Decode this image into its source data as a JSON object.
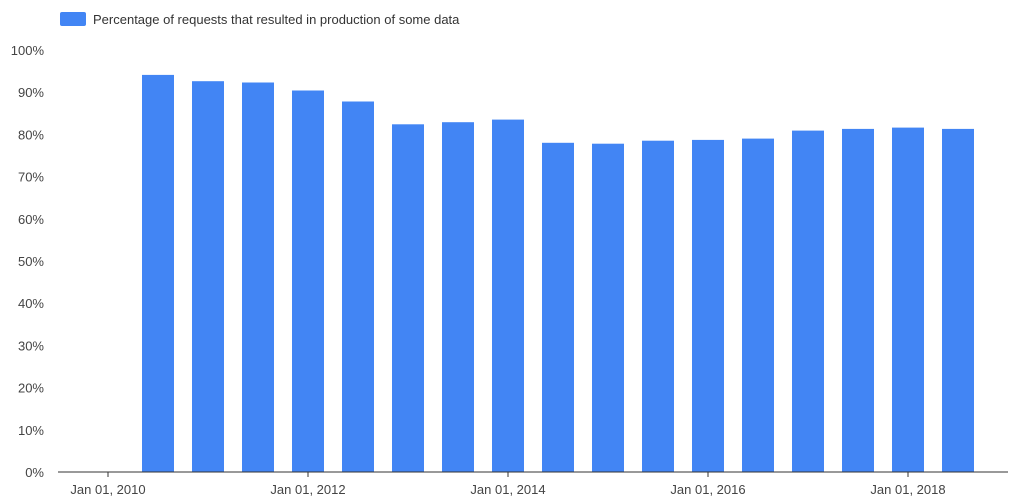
{
  "chart_data": {
    "type": "bar",
    "legend": {
      "position": "top-left",
      "entries": [
        "Percentage of requests that resulted in production of some data"
      ]
    },
    "series": [
      {
        "name": "Percentage of requests that resulted in production of some data",
        "color": "#4285f4",
        "values": [
          94.1,
          92.6,
          92.3,
          90.4,
          87.8,
          82.4,
          82.9,
          83.5,
          78.0,
          77.8,
          78.5,
          78.7,
          79.0,
          80.9,
          81.3,
          81.6,
          81.3
        ]
      }
    ],
    "x": [
      "2010-07",
      "2011-01",
      "2011-07",
      "2012-01",
      "2012-07",
      "2013-01",
      "2013-07",
      "2014-01",
      "2014-07",
      "2015-01",
      "2015-07",
      "2016-01",
      "2016-07",
      "2017-01",
      "2017-07",
      "2018-01",
      "2018-07"
    ],
    "x_ticks": [
      "Jan 01, 2010",
      "Jan 01, 2012",
      "Jan 01, 2014",
      "Jan 01, 2016",
      "Jan 01, 2018"
    ],
    "xlim": [
      "2009-07",
      "2019-01"
    ],
    "y_ticks": [
      "0%",
      "10%",
      "20%",
      "30%",
      "40%",
      "50%",
      "60%",
      "70%",
      "80%",
      "90%",
      "100%"
    ],
    "ylim": [
      0,
      100
    ],
    "grid": false,
    "title": "",
    "xlabel": "",
    "ylabel": ""
  }
}
